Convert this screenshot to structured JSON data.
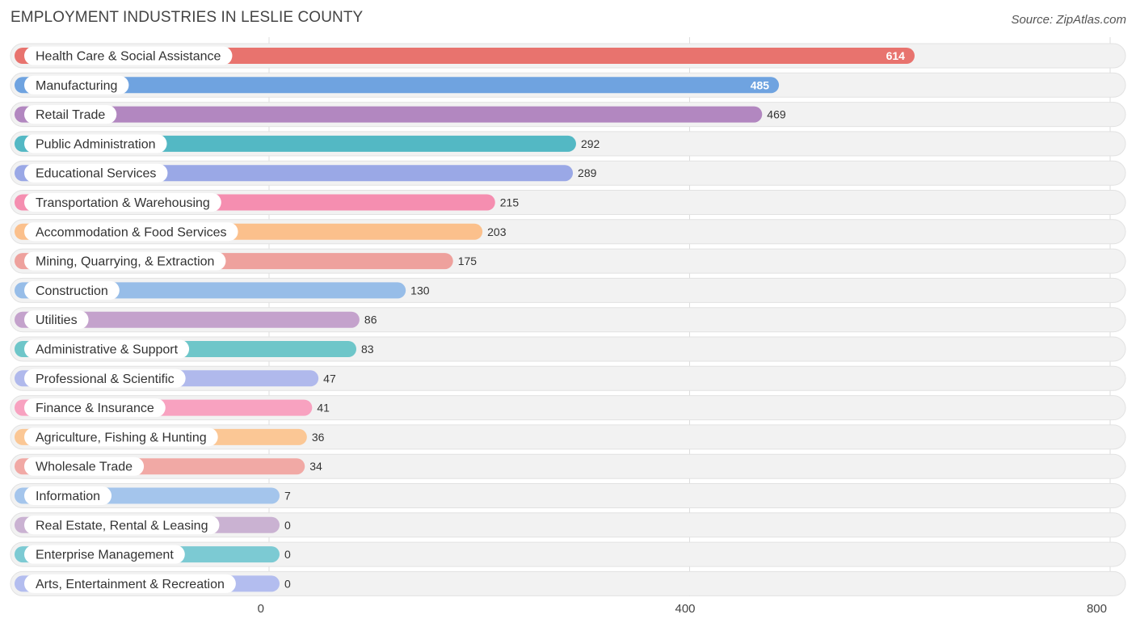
{
  "chart_data": {
    "type": "bar",
    "orientation": "horizontal",
    "title": "EMPLOYMENT INDUSTRIES IN LESLIE COUNTY",
    "source": "Source: ZipAtlas.com",
    "xlabel": "",
    "ylabel": "",
    "xlim": [
      0,
      800
    ],
    "ticks": [
      0,
      400,
      800
    ],
    "tick_labels": [
      "0",
      "400",
      "800"
    ],
    "grid": true,
    "categories": [
      "Health Care & Social Assistance",
      "Manufacturing",
      "Retail Trade",
      "Public Administration",
      "Educational Services",
      "Transportation & Warehousing",
      "Accommodation & Food Services",
      "Mining, Quarrying, & Extraction",
      "Construction",
      "Utilities",
      "Administrative & Support",
      "Professional & Scientific",
      "Finance & Insurance",
      "Agriculture, Fishing & Hunting",
      "Wholesale Trade",
      "Information",
      "Real Estate, Rental & Leasing",
      "Enterprise Management",
      "Arts, Entertainment & Recreation"
    ],
    "values": [
      614,
      485,
      469,
      292,
      289,
      215,
      203,
      175,
      130,
      86,
      83,
      47,
      41,
      36,
      34,
      7,
      0,
      0,
      0
    ],
    "value_labels": [
      "614",
      "485",
      "469",
      "292",
      "289",
      "215",
      "203",
      "175",
      "130",
      "86",
      "83",
      "47",
      "41",
      "36",
      "34",
      "7",
      "0",
      "0",
      "0"
    ],
    "colors": [
      "#e8736e",
      "#6fa3e0",
      "#b287c0",
      "#53b8c4",
      "#9aa8e6",
      "#f58eb0",
      "#fbc08c",
      "#eea19d",
      "#97bde8",
      "#c4a2cc",
      "#6ec6c9",
      "#b0b9ec",
      "#f8a2c0",
      "#fbc795",
      "#f1a9a5",
      "#a4c5ec",
      "#cab2d2",
      "#7ccad3",
      "#b3bdef"
    ]
  }
}
